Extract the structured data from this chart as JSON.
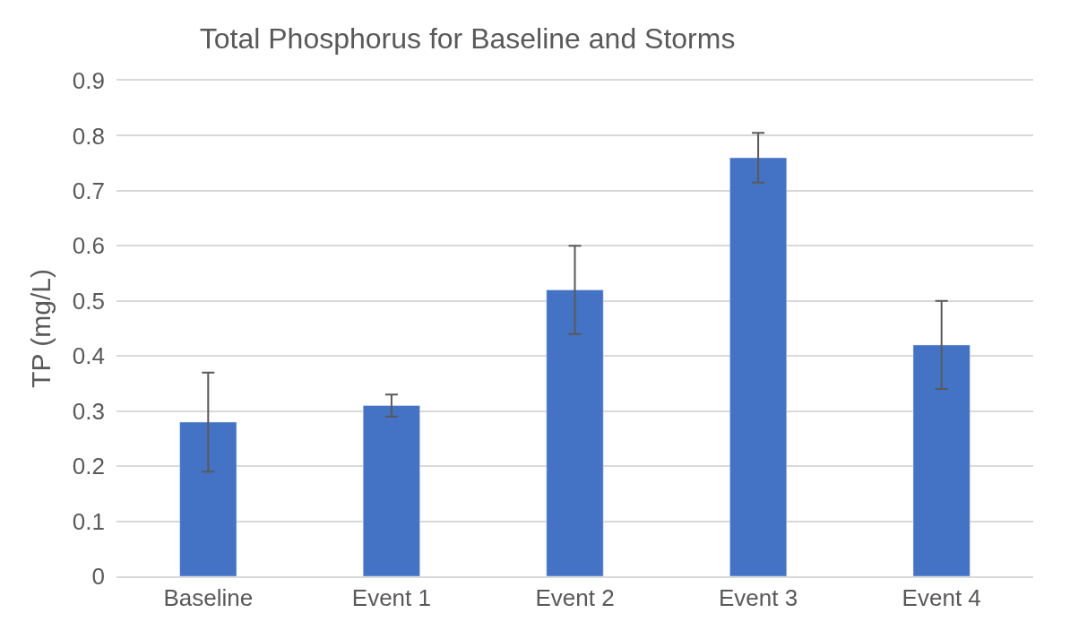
{
  "chart_data": {
    "type": "bar",
    "title": "Total Phosphorus for Baseline and Storms",
    "ylabel": "TP (mg/L)",
    "categories": [
      "Baseline",
      "Event 1",
      "Event 2",
      "Event 3",
      "Event 4"
    ],
    "values": [
      0.28,
      0.31,
      0.52,
      0.76,
      0.42
    ],
    "errors": [
      0.09,
      0.02,
      0.08,
      0.045,
      0.08
    ],
    "color": "#4472c4",
    "ylim": [
      0,
      0.9
    ],
    "yticks": [
      0,
      0.1,
      0.2,
      0.3,
      0.4,
      0.5,
      0.6,
      0.7,
      0.8,
      0.9
    ],
    "grid": "y"
  }
}
